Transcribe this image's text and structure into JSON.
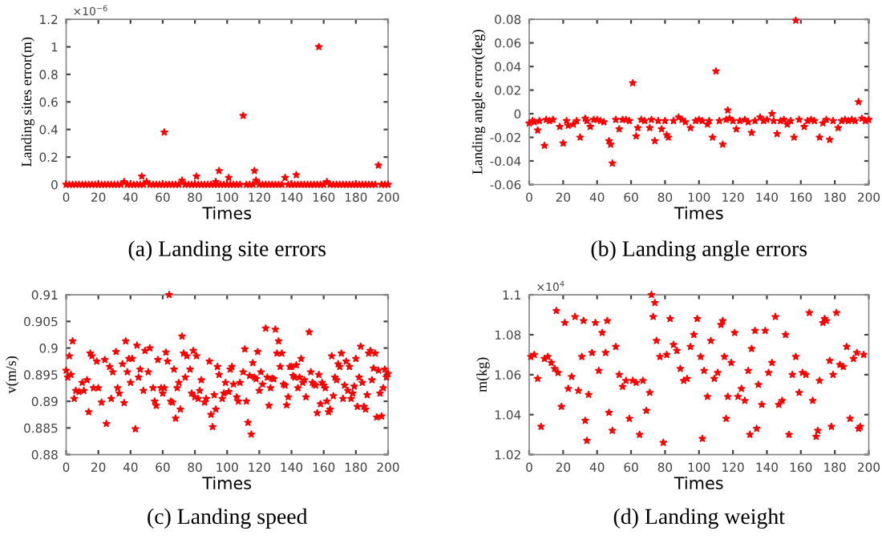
{
  "chart_data": [
    {
      "type": "scatter",
      "title": "(a) Landing site errors",
      "xlabel": "Times",
      "ylabel": "Landing sites error(m)",
      "annotations": [
        "×10$^{−6}$"
      ],
      "marker": "star",
      "grid": false,
      "xlim": [
        0,
        200
      ],
      "xticks": [
        0,
        20,
        40,
        60,
        80,
        100,
        120,
        140,
        160,
        180,
        200
      ],
      "ylim": [
        0,
        1.2
      ],
      "yticks": [
        0,
        0.2,
        0.4,
        0.6,
        0.8,
        1,
        1.2
      ],
      "series": [
        {
          "color": "#ff0000",
          "x": [
            0,
            2,
            4,
            6,
            8,
            10,
            12,
            14,
            16,
            18,
            20,
            22,
            24,
            26,
            28,
            30,
            32,
            34,
            36,
            38,
            40,
            42,
            44,
            46,
            47,
            48,
            50,
            52,
            54,
            56,
            58,
            60,
            61,
            62,
            64,
            66,
            68,
            70,
            72,
            74,
            76,
            78,
            80,
            81,
            82,
            84,
            86,
            88,
            90,
            92,
            93,
            94,
            95,
            96,
            98,
            100,
            101,
            102,
            104,
            106,
            108,
            110,
            112,
            114,
            116,
            117,
            118,
            120,
            122,
            124,
            126,
            128,
            130,
            132,
            134,
            136,
            138,
            140,
            142,
            143,
            144,
            146,
            148,
            150,
            152,
            154,
            156,
            157,
            158,
            160,
            162,
            164,
            166,
            168,
            170,
            172,
            174,
            176,
            178,
            180,
            182,
            184,
            186,
            188,
            190,
            192,
            194,
            196,
            198,
            200
          ],
          "values": [
            0,
            0,
            0,
            0,
            0,
            0,
            0,
            0,
            0,
            0,
            0,
            0,
            0,
            0,
            0,
            0,
            0,
            0,
            0.02,
            0,
            0,
            0,
            0,
            0,
            0.06,
            0,
            0.02,
            0,
            0,
            0,
            0,
            0,
            0.38,
            0,
            0,
            0,
            0,
            0,
            0.03,
            0,
            0,
            0,
            0,
            0.06,
            0,
            0,
            0,
            0,
            0,
            0,
            0.02,
            0,
            0.1,
            0,
            0,
            0,
            0.05,
            0,
            0,
            0,
            0,
            0.5,
            0,
            0,
            0,
            0.1,
            0.03,
            0,
            0,
            0,
            0,
            0,
            0,
            0,
            0,
            0.05,
            0,
            0,
            0,
            0.07,
            0,
            0,
            0,
            0,
            0,
            0,
            0,
            1.0,
            0,
            0,
            0.02,
            0,
            0,
            0,
            0,
            0,
            0,
            0,
            0,
            0,
            0,
            0,
            0,
            0,
            0,
            0,
            0.14,
            0,
            0,
            0
          ]
        }
      ]
    },
    {
      "type": "scatter",
      "title": "(b) Landing angle errors",
      "xlabel": "Times",
      "ylabel": "Landing angle error(deg)",
      "marker": "star",
      "grid": false,
      "xlim": [
        0,
        200
      ],
      "xticks": [
        0,
        20,
        40,
        60,
        80,
        100,
        120,
        140,
        160,
        180,
        200
      ],
      "ylim": [
        -0.06,
        0.08
      ],
      "yticks": [
        -0.06,
        -0.04,
        -0.02,
        0,
        0.02,
        0.04,
        0.06,
        0.08
      ],
      "series": [
        {
          "color": "#ff0000",
          "x": [
            0,
            2,
            3,
            5,
            6,
            9,
            10,
            12,
            14,
            18,
            20,
            22,
            23,
            26,
            28,
            30,
            33,
            34,
            36,
            38,
            40,
            42,
            44,
            47,
            48,
            49,
            51,
            53,
            55,
            57,
            59,
            61,
            63,
            64,
            66,
            68,
            71,
            72,
            74,
            76,
            78,
            80,
            81,
            82,
            85,
            88,
            90,
            92,
            95,
            98,
            100,
            102,
            105,
            106,
            108,
            110,
            112,
            114,
            116,
            117,
            118,
            120,
            122,
            124,
            127,
            129,
            131,
            133,
            136,
            138,
            140,
            143,
            144,
            146,
            148,
            150,
            152,
            154,
            156,
            157,
            159,
            162,
            164,
            166,
            168,
            171,
            173,
            175,
            177,
            179,
            182,
            184,
            186,
            188,
            190,
            192,
            194,
            196,
            198,
            200
          ],
          "values": [
            -0.008,
            -0.006,
            -0.007,
            -0.014,
            -0.006,
            -0.027,
            -0.005,
            -0.006,
            -0.005,
            -0.011,
            -0.025,
            -0.006,
            -0.01,
            -0.009,
            -0.006,
            -0.02,
            -0.004,
            -0.006,
            -0.011,
            -0.005,
            -0.005,
            -0.006,
            -0.007,
            -0.023,
            -0.026,
            -0.042,
            -0.005,
            -0.013,
            -0.005,
            -0.005,
            -0.006,
            0.026,
            -0.019,
            -0.012,
            -0.005,
            -0.006,
            -0.012,
            -0.005,
            -0.023,
            -0.006,
            -0.013,
            -0.006,
            -0.018,
            -0.02,
            -0.006,
            -0.003,
            -0.005,
            -0.007,
            -0.012,
            -0.006,
            -0.005,
            -0.006,
            -0.009,
            -0.006,
            -0.02,
            0.036,
            -0.006,
            -0.026,
            -0.005,
            0.003,
            -0.004,
            -0.006,
            -0.013,
            -0.006,
            -0.005,
            -0.007,
            -0.016,
            -0.006,
            -0.003,
            -0.006,
            -0.005,
            0,
            -0.006,
            -0.017,
            -0.006,
            -0.005,
            -0.009,
            -0.006,
            -0.02,
            0.079,
            -0.005,
            -0.011,
            -0.006,
            -0.005,
            -0.006,
            -0.02,
            -0.008,
            -0.005,
            -0.022,
            -0.006,
            -0.012,
            -0.006,
            -0.005,
            -0.006,
            -0.005,
            -0.006,
            0.01,
            -0.004,
            -0.006,
            -0.005
          ]
        }
      ]
    },
    {
      "type": "scatter",
      "title": "(c) Landing speed",
      "xlabel": "Times",
      "ylabel": "v(m/s)",
      "marker": "star",
      "grid": false,
      "xlim": [
        0,
        200
      ],
      "xticks": [
        0,
        20,
        40,
        60,
        80,
        100,
        120,
        140,
        160,
        180,
        200
      ],
      "ylim": [
        0.88,
        0.91
      ],
      "yticks": [
        0.88,
        0.885,
        0.89,
        0.895,
        0.9,
        0.905,
        0.91
      ],
      "series": [
        {
          "color": "#ff0000",
          "x": [
            0,
            1,
            2,
            3,
            4,
            5,
            6,
            8,
            10,
            11,
            13,
            14,
            15,
            16,
            17,
            19,
            20,
            22,
            24,
            25,
            27,
            28,
            29,
            31,
            32,
            33,
            35,
            36,
            37,
            38,
            39,
            40,
            41,
            43,
            44,
            45,
            46,
            48,
            49,
            51,
            52,
            54,
            55,
            56,
            57,
            59,
            60,
            61,
            62,
            63,
            64,
            65,
            66,
            67,
            68,
            69,
            70,
            71,
            72,
            73,
            74,
            75,
            77,
            78,
            79,
            80,
            81,
            82,
            83,
            84,
            86,
            87,
            89,
            90,
            91,
            92,
            93,
            94,
            95,
            97,
            98,
            99,
            101,
            102,
            103,
            104,
            106,
            107,
            108,
            110,
            111,
            112,
            113,
            114,
            115,
            116,
            117,
            118,
            119,
            120,
            121,
            122,
            124,
            125,
            126,
            127,
            128,
            129,
            130,
            131,
            132,
            133,
            134,
            135,
            136,
            137,
            138,
            139,
            140,
            141,
            142,
            143,
            144,
            145,
            146,
            147,
            148,
            149,
            151,
            152,
            153,
            154,
            155,
            156,
            157,
            158,
            159,
            160,
            161,
            162,
            163,
            164,
            165,
            166,
            167,
            168,
            169,
            170,
            171,
            172,
            173,
            174,
            175,
            176,
            177,
            178,
            179,
            180,
            181,
            182,
            183,
            184,
            185,
            186,
            187,
            188,
            189,
            190,
            191,
            192,
            193,
            194,
            195,
            196,
            197,
            198,
            199,
            200
          ],
          "values": [
            0.8958,
            0.8945,
            0.8985,
            0.895,
            0.9013,
            0.8905,
            0.892,
            0.8918,
            0.8935,
            0.892,
            0.894,
            0.888,
            0.899,
            0.8985,
            0.8925,
            0.8975,
            0.8925,
            0.8898,
            0.8978,
            0.8858,
            0.8965,
            0.8905,
            0.8955,
            0.8993,
            0.8925,
            0.8915,
            0.897,
            0.8897,
            0.9013,
            0.8955,
            0.898,
            0.8935,
            0.898,
            0.8848,
            0.9005,
            0.8945,
            0.896,
            0.892,
            0.8995,
            0.8955,
            0.9,
            0.8925,
            0.89,
            0.8892,
            0.8978,
            0.8925,
            0.8915,
            0.8925,
            0.8992,
            0.8975,
            0.91,
            0.89,
            0.8898,
            0.896,
            0.8868,
            0.8925,
            0.8935,
            0.8885,
            0.9022,
            0.899,
            0.8945,
            0.8985,
            0.896,
            0.8915,
            0.8995,
            0.8908,
            0.8985,
            0.8905,
            0.892,
            0.894,
            0.8898,
            0.8905,
            0.8975,
            0.8875,
            0.8852,
            0.8912,
            0.8885,
            0.8965,
            0.895,
            0.8905,
            0.8915,
            0.8935,
            0.8918,
            0.896,
            0.8965,
            0.8932,
            0.8908,
            0.89,
            0.8935,
            0.8955,
            0.8998,
            0.89,
            0.886,
            0.8948,
            0.8838,
            0.8972,
            0.8945,
            0.8942,
            0.8993,
            0.892,
            0.8955,
            0.8932,
            0.9037,
            0.8945,
            0.8892,
            0.8925,
            0.8943,
            0.8942,
            0.9035,
            0.899,
            0.9013,
            0.8965,
            0.899,
            0.8932,
            0.893,
            0.8893,
            0.8908,
            0.8965,
            0.8965,
            0.8948,
            0.8945,
            0.8968,
            0.8925,
            0.8945,
            0.898,
            0.8935,
            0.894,
            0.8908,
            0.903,
            0.8955,
            0.8935,
            0.8932,
            0.893,
            0.8878,
            0.895,
            0.8895,
            0.8935,
            0.893,
            0.8925,
            0.89,
            0.888,
            0.8885,
            0.8985,
            0.891,
            0.8945,
            0.894,
            0.897,
            0.8965,
            0.899,
            0.8905,
            0.893,
            0.8975,
            0.892,
            0.8965,
            0.8905,
            0.8915,
            0.8928,
            0.898,
            0.889,
            0.8945,
            0.9003,
            0.8935,
            0.889,
            0.8885,
            0.8912,
            0.899,
            0.8995,
            0.894,
            0.8962,
            0.899,
            0.887,
            0.8958,
            0.8915,
            0.8872,
            0.8925,
            0.896,
            0.8945,
            0.8952
          ]
        }
      ]
    },
    {
      "type": "scatter",
      "title": "(d) Landing weight",
      "xlabel": "Times",
      "ylabel": "m(kg)",
      "annotations": [
        "×10$^{4}$"
      ],
      "marker": "star",
      "grid": false,
      "xlim": [
        0,
        200
      ],
      "xticks": [
        0,
        20,
        40,
        60,
        80,
        100,
        120,
        140,
        160,
        180,
        200
      ],
      "ylim": [
        1.02,
        1.1
      ],
      "yticks": [
        1.02,
        1.04,
        1.06,
        1.08,
        1.1
      ],
      "series": [
        {
          "color": "#ff0000",
          "x": [
            1,
            3,
            5,
            7,
            9,
            11,
            13,
            15,
            16,
            17,
            19,
            21,
            23,
            25,
            27,
            29,
            31,
            32,
            33,
            34,
            35,
            37,
            39,
            41,
            43,
            45,
            46,
            47,
            49,
            51,
            53,
            55,
            57,
            59,
            61,
            63,
            65,
            67,
            69,
            71,
            72,
            73,
            74,
            75,
            77,
            79,
            81,
            83,
            85,
            87,
            89,
            91,
            93,
            95,
            97,
            99,
            101,
            102,
            103,
            105,
            107,
            109,
            111,
            113,
            114,
            115,
            116,
            117,
            119,
            121,
            123,
            125,
            127,
            129,
            130,
            131,
            133,
            134,
            135,
            137,
            139,
            141,
            143,
            145,
            147,
            149,
            151,
            153,
            155,
            157,
            159,
            161,
            163,
            165,
            167,
            169,
            170,
            171,
            173,
            174,
            175,
            177,
            178,
            179,
            181,
            183,
            185,
            187,
            189,
            191,
            193,
            194,
            195,
            197
          ],
          "values": [
            1.069,
            1.07,
            1.058,
            1.034,
            1.068,
            1.069,
            1.066,
            1.063,
            1.092,
            1.061,
            1.044,
            1.086,
            1.053,
            1.059,
            1.089,
            1.052,
            1.069,
            1.087,
            1.037,
            1.027,
            1.05,
            1.071,
            1.086,
            1.062,
            1.081,
            1.071,
            1.087,
            1.041,
            1.032,
            1.074,
            1.06,
            1.054,
            1.057,
            1.038,
            1.057,
            1.056,
            1.03,
            1.057,
            1.042,
            1.051,
            1.1,
            1.089,
            1.096,
            1.077,
            1.069,
            1.026,
            1.07,
            1.088,
            1.075,
            1.072,
            1.063,
            1.057,
            1.058,
            1.074,
            1.08,
            1.088,
            1.069,
            1.028,
            1.062,
            1.049,
            1.077,
            1.058,
            1.061,
            1.085,
            1.087,
            1.069,
            1.038,
            1.049,
            1.066,
            1.081,
            1.049,
            1.053,
            1.047,
            1.062,
            1.03,
            1.073,
            1.082,
            1.033,
            1.055,
            1.045,
            1.082,
            1.061,
            1.066,
            1.089,
            1.045,
            1.047,
            1.08,
            1.03,
            1.06,
            1.069,
            1.051,
            1.061,
            1.06,
            1.091,
            1.047,
            1.029,
            1.032,
            1.057,
            1.086,
            1.088,
            1.087,
            1.067,
            1.034,
            1.06,
            1.091,
            1.065,
            1.064,
            1.074,
            1.038,
            1.068,
            1.071,
            1.033,
            1.034,
            1.07
          ]
        }
      ]
    }
  ]
}
